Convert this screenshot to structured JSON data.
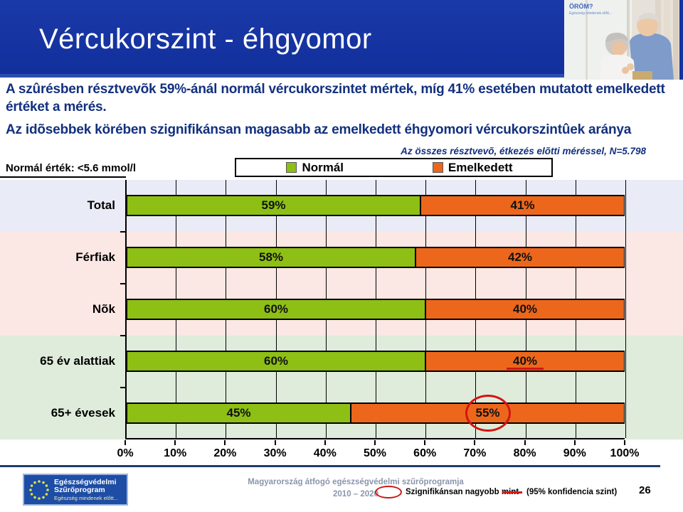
{
  "header": {
    "title": "Vércukorszint - éhgyomor",
    "photo_label": "ÖRÖM?",
    "photo_tagline": "Egészség mindenek előtt..."
  },
  "intro": {
    "paragraph1": "A szûrésben résztvevõk 59%-ánál normál vércukorszintet mértek, míg 41% esetében mutatott emelkedett értéket a mérés.",
    "paragraph2": "Az idõsebbek körében szignifikánsan magasabb az emelkedett éhgyomori vércukorszintûek aránya",
    "note": "Az összes résztvevõ, étkezés elõtti méréssel, N=5.798",
    "normal_value": "Normál érték: <5.6 mmol/l"
  },
  "legend": {
    "items": [
      {
        "label": "Normál",
        "color": "#8dbf15"
      },
      {
        "label": "Emelkedett",
        "color": "#ec671b"
      }
    ]
  },
  "chart_data": {
    "type": "bar",
    "orientation": "horizontal",
    "stacked": true,
    "categories": [
      "Total",
      "Férfiak",
      "Nõk",
      "65 év alattiak",
      "65+ évesek"
    ],
    "series": [
      {
        "name": "Normál",
        "color": "#8dbf15",
        "values": [
          59,
          58,
          60,
          60,
          45
        ]
      },
      {
        "name": "Emelkedett",
        "color": "#ec671b",
        "values": [
          41,
          42,
          40,
          40,
          55
        ]
      }
    ],
    "x_ticks": [
      "0%",
      "10%",
      "20%",
      "30%",
      "40%",
      "50%",
      "60%",
      "70%",
      "80%",
      "90%",
      "100%"
    ],
    "xlim": [
      0,
      100
    ],
    "grid": "vertical-every-10pct",
    "legend_position": "top",
    "bands": [
      {
        "color": "#e9ebf6",
        "rows": 1
      },
      {
        "color": "#fbe7e3",
        "rows": 2
      },
      {
        "color": "#dfecdb",
        "rows": 2
      }
    ],
    "annotations": {
      "underline": {
        "category": "65 év alattiak",
        "series": "Emelkedett",
        "label": "40%"
      },
      "circle": {
        "category": "65+ évesek",
        "series": "Emelkedett",
        "label": "55%"
      }
    }
  },
  "footer": {
    "logo_line1": "Egészségvédelmi",
    "logo_line2": "Szűrőprogram",
    "logo_tagline": "Egészség mindenek előtt...",
    "center_line1": "Magyarország átfogó egészségvédelmi szűrőprogramja",
    "center_line2": "2010 – 2020",
    "significance_text": "Szignifikánsan nagyobb mint",
    "confidence_text": "(95% konfidencia szint)",
    "page_number": "26"
  }
}
